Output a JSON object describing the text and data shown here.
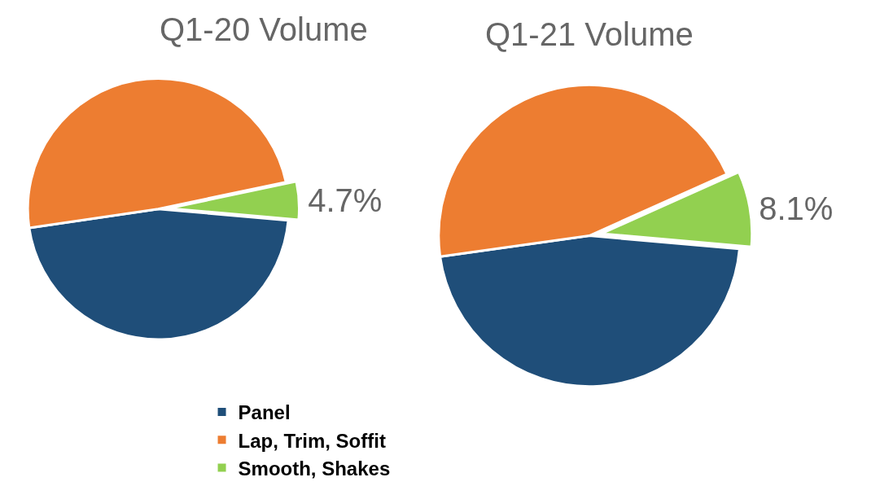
{
  "chart_data": [
    {
      "type": "pie",
      "title": "Q1-20 Volume",
      "categories": [
        "Panel",
        "Lap, Trim, Soffit",
        "Smooth, Shakes"
      ],
      "values": [
        46.3,
        49.0,
        4.7
      ],
      "colors": [
        "#1f4e79",
        "#ed7d31",
        "#92d050"
      ],
      "value_labels": [
        null,
        null,
        "4.7%"
      ],
      "legend": "bottom"
    },
    {
      "type": "pie",
      "title": "Q1-21 Volume",
      "categories": [
        null,
        null,
        null
      ],
      "values": [
        46.4,
        45.5,
        8.1
      ],
      "colors": [
        "#1f4e79",
        "#ed7d31",
        "#92d050"
      ],
      "value_labels": [
        null,
        null,
        "8.1%"
      ]
    }
  ]
}
